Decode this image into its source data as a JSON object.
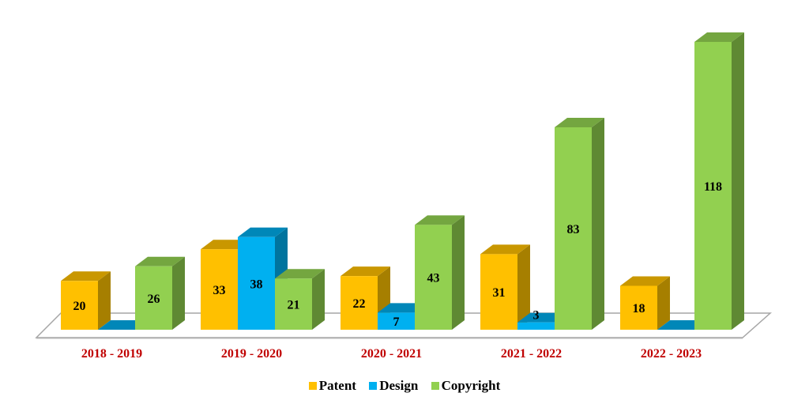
{
  "chart_data": {
    "type": "bar",
    "style": "3d-clustered-column",
    "title": "",
    "xlabel": "",
    "ylabel": "",
    "categories": [
      "2018 - 2019",
      "2019 - 2020",
      "2020 - 2021",
      "2021 - 2022",
      "2022 - 2023"
    ],
    "series": [
      {
        "name": "Patent",
        "values": [
          20,
          33,
          22,
          31,
          18
        ],
        "color": "#FFC000",
        "top": "#C99700",
        "side": "#A67F00"
      },
      {
        "name": "Design",
        "values": [
          0,
          38,
          7,
          3,
          0
        ],
        "color": "#00B0F0",
        "top": "#0087B8",
        "side": "#00749E"
      },
      {
        "name": "Copyright",
        "values": [
          26,
          21,
          43,
          83,
          118
        ],
        "color": "#92D050",
        "top": "#74A640",
        "side": "#5F8933"
      }
    ],
    "data_labels": [
      [
        "20",
        "",
        "26"
      ],
      [
        "33",
        "38",
        "21"
      ],
      [
        "22",
        "7",
        "43"
      ],
      [
        "31",
        "3",
        "83"
      ],
      [
        "18",
        "",
        "118"
      ]
    ],
    "ylim": [
      0,
      118
    ],
    "grid": false,
    "legend_position": "bottom",
    "category_label_color": "#C00000"
  },
  "legend": {
    "items": [
      {
        "label": "Patent",
        "color": "#FFC000"
      },
      {
        "label": "Design",
        "color": "#00B0F0"
      },
      {
        "label": "Copyright",
        "color": "#92D050"
      }
    ]
  }
}
